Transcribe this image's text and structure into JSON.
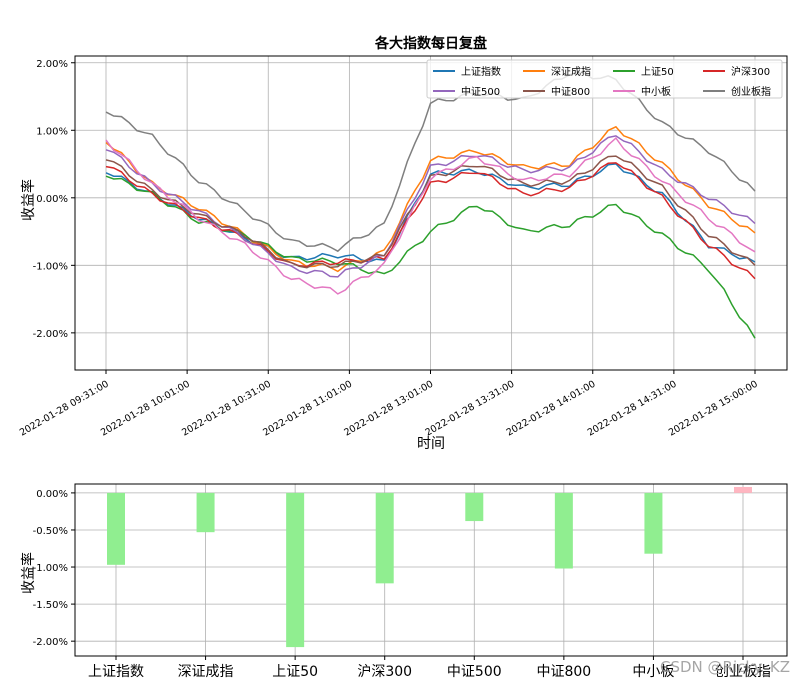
{
  "watermark": "CSDN @Ricky_KZ",
  "chart_data": [
    {
      "type": "line",
      "title": "各大指数每日复盘",
      "xlabel": "时间",
      "ylabel": "收益率",
      "ylim": [
        -2.55,
        2.1
      ],
      "yticks": [
        "2.00%",
        "1.00%",
        "0.00%",
        "-1.00%",
        "-2.00%"
      ],
      "ytick_values": [
        2.0,
        1.0,
        0.0,
        -1.0,
        -2.0
      ],
      "xticks": [
        "2022-01-28 09:31:00",
        "2022-01-28 10:01:00",
        "2022-01-28 10:31:00",
        "2022-01-28 11:01:00",
        "2022-01-28 13:01:00",
        "2022-01-28 13:31:00",
        "2022-01-28 14:01:00",
        "2022-01-28 14:31:00",
        "2022-01-28 15:00:00"
      ],
      "grid": true,
      "legend_position": "top-right",
      "series": [
        {
          "name": "上证指数",
          "color": "#1f77b4",
          "values": [
            0.4,
            0.05,
            -0.3,
            -0.6,
            -0.9,
            -0.85,
            -0.95,
            0.35,
            0.4,
            0.15,
            0.2,
            0.5,
            0.05,
            -0.7,
            -0.95
          ]
        },
        {
          "name": "深证成指",
          "color": "#ff7f0e",
          "values": [
            0.85,
            0.2,
            -0.15,
            -0.55,
            -0.95,
            -1.05,
            -0.8,
            0.55,
            0.7,
            0.45,
            0.5,
            1.05,
            0.5,
            -0.1,
            -0.52
          ]
        },
        {
          "name": "上证50",
          "color": "#2ca02c",
          "values": [
            0.35,
            0.05,
            -0.35,
            -0.55,
            -0.9,
            -0.95,
            -1.15,
            -0.5,
            -0.1,
            -0.5,
            -0.4,
            -0.1,
            -0.55,
            -1.05,
            -2.08
          ]
        },
        {
          "name": "沪深300",
          "color": "#d62728",
          "values": [
            0.5,
            0.05,
            -0.3,
            -0.6,
            -1.0,
            -0.95,
            -0.9,
            0.2,
            0.4,
            0.05,
            0.15,
            0.55,
            0.0,
            -0.7,
            -1.2
          ]
        },
        {
          "name": "中证500",
          "color": "#9467bd",
          "values": [
            0.75,
            0.2,
            -0.2,
            -0.6,
            -1.05,
            -1.15,
            -0.85,
            0.45,
            0.65,
            0.4,
            0.45,
            0.95,
            0.4,
            0.0,
            -0.38
          ]
        },
        {
          "name": "中证800",
          "color": "#8c564b",
          "values": [
            0.6,
            0.1,
            -0.25,
            -0.55,
            -1.0,
            -1.0,
            -0.85,
            0.3,
            0.5,
            0.2,
            0.25,
            0.65,
            0.15,
            -0.55,
            -1.0
          ]
        },
        {
          "name": "中小板",
          "color": "#e377c2",
          "values": [
            0.85,
            0.2,
            -0.3,
            -0.7,
            -1.2,
            -1.4,
            -1.0,
            0.3,
            0.6,
            0.25,
            0.35,
            0.85,
            0.25,
            -0.3,
            -0.8
          ]
        },
        {
          "name": "创业板指",
          "color": "#7f7f7f",
          "values": [
            1.3,
            0.9,
            0.25,
            -0.2,
            -0.65,
            -0.75,
            -0.4,
            1.4,
            1.55,
            1.45,
            1.85,
            1.75,
            1.1,
            0.7,
            0.1
          ]
        }
      ]
    },
    {
      "type": "bar",
      "ylabel": "收益率",
      "ylim": [
        -2.2,
        0.12
      ],
      "yticks": [
        "0.00%",
        "-0.50%",
        "-1.00%",
        "-1.50%",
        "-2.00%"
      ],
      "ytick_values": [
        0.0,
        -0.5,
        -1.0,
        -1.5,
        -2.0
      ],
      "categories": [
        "上证指数",
        "深证成指",
        "上证50",
        "沪深300",
        "中证500",
        "中证800",
        "中小板",
        "创业板指"
      ],
      "values": [
        -0.97,
        -0.53,
        -2.08,
        -1.22,
        -0.38,
        -1.02,
        -0.82,
        0.08
      ],
      "positive_color": "#ffb6c1",
      "negative_color": "#90ee90",
      "grid": true
    }
  ]
}
